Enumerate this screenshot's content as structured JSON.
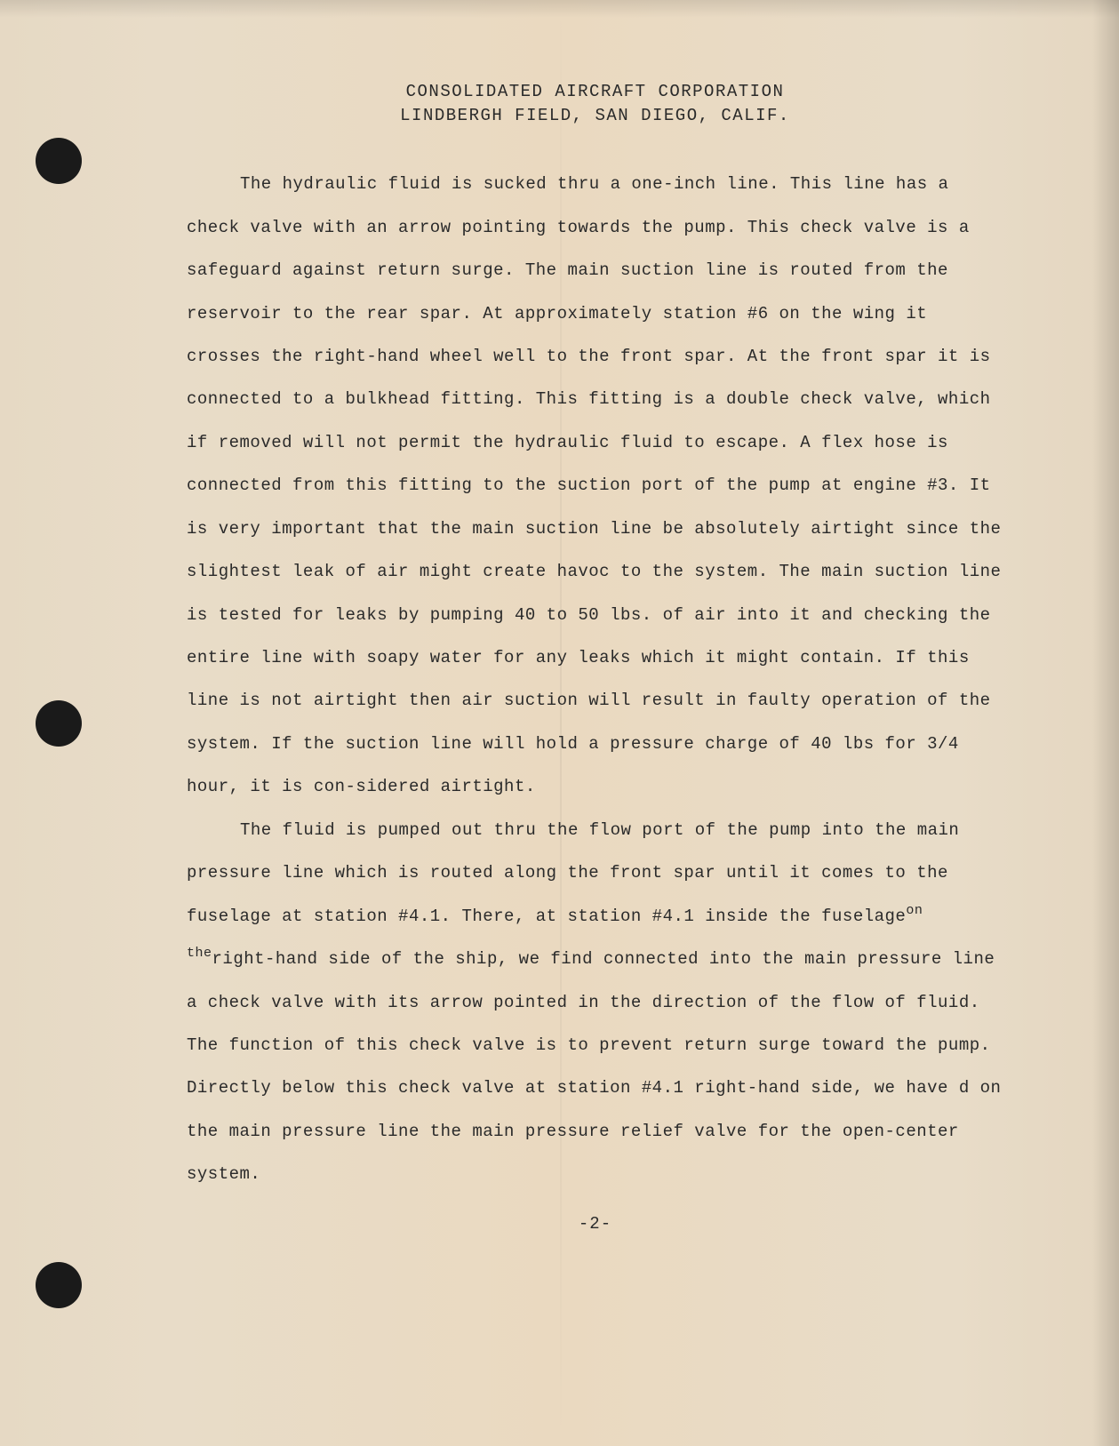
{
  "document": {
    "colors": {
      "paper_bg": "#e8dcc8",
      "text": "#2a2a2a",
      "punch_hole": "#1a1a1a"
    },
    "typography": {
      "font_family": "Courier New",
      "body_size_pt": 14,
      "line_height": 2.55,
      "letter_spacing": 0.5
    },
    "header": {
      "line1": "CONSOLIDATED AIRCRAFT CORPORATION",
      "line2": "LINDBERGH FIELD, SAN DIEGO, CALIF."
    },
    "paragraphs": [
      {
        "text_parts": [
          "The hydraulic fluid is sucked thru a one-inch line.  This line has a check valve with an arrow pointing towards the pump. This check valve is a safeguard against return surge.  The main suction line is routed from the reservoir to the rear spar.  At approximately station #6 on the wing it crosses the right-hand wheel well to the front spar.  At the front spar it is connected to a bulkhead fitting.  This fitting is a double check valve, which if removed will not permit the hydraulic fluid to escape. A flex hose is connected from this fitting to the suction port of the pump at engine #3.  It is very important that the main suction line be absolutely airtight since the slightest leak of air might create havoc to the system.  The main suction line is tested for leaks by pumping 40 to 50 lbs. of air into it and checking the entire line with soapy water for any leaks which it might contain.  If this line is not airtight then air suction will result in faulty operation of the system.  If the suction line will hold a pressure charge of 40 lbs for 3/4 hour, it    is   con-sidered airtight."
        ]
      },
      {
        "text_parts": [
          "The fluid is pumped out thru the flow port of the pump into the main pressure line which is routed along the front spar until it comes to the fuselage at station #4.1.  There, at station #4.1 inside the fuselage",
          "on the",
          "right-hand side of the ship, we find connected into the main pressure line a check valve with its arrow pointed in the direction of the flow of fluid.  The function of this check valve is to prevent return surge toward the pump.  Directly below this check valve at station #4.1 right-hand side, we have     d on the main pressure line the main pressure relief valve for the open-center system."
        ]
      }
    ],
    "page_number": "-2-"
  }
}
